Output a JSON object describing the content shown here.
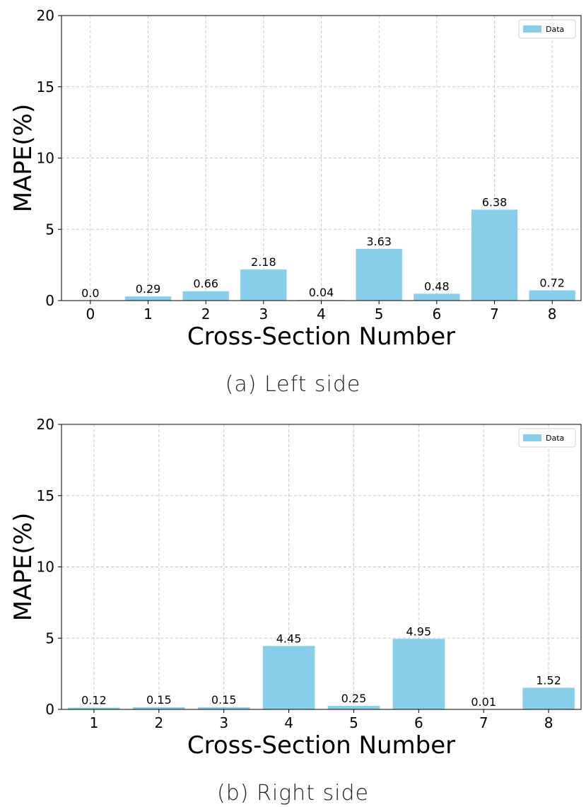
{
  "chart_data": [
    {
      "type": "bar",
      "caption": "(a) Left side",
      "xlabel": "Cross-Section Number",
      "ylabel": "MAPE(%)",
      "categories": [
        "0",
        "1",
        "2",
        "3",
        "4",
        "5",
        "6",
        "7",
        "8"
      ],
      "series": [
        {
          "name": "Data",
          "values": [
            0.0,
            0.29,
            0.66,
            2.18,
            0.04,
            3.63,
            0.48,
            6.38,
            0.72
          ],
          "labels": [
            "0.0",
            "0.29",
            "0.66",
            "2.18",
            "0.04",
            "3.63",
            "0.48",
            "6.38",
            "0.72"
          ]
        }
      ],
      "yticks": [
        0,
        5,
        10,
        15,
        20
      ],
      "ylim": [
        0,
        20
      ],
      "grid": true,
      "legend_position": "top-right",
      "bar_color": "#87ceeb"
    },
    {
      "type": "bar",
      "caption": "(b) Right side",
      "xlabel": "Cross-Section Number",
      "ylabel": "MAPE(%)",
      "categories": [
        "1",
        "2",
        "3",
        "4",
        "5",
        "6",
        "7",
        "8"
      ],
      "series": [
        {
          "name": "Data",
          "values": [
            0.12,
            0.15,
            0.15,
            4.45,
            0.25,
            4.95,
            0.01,
            1.52
          ],
          "labels": [
            "0.12",
            "0.15",
            "0.15",
            "4.45",
            "0.25",
            "4.95",
            "0.01",
            "1.52"
          ]
        }
      ],
      "yticks": [
        0,
        5,
        10,
        15,
        20
      ],
      "ylim": [
        0,
        20
      ],
      "grid": true,
      "legend_position": "top-right",
      "bar_color": "#87ceeb"
    }
  ]
}
